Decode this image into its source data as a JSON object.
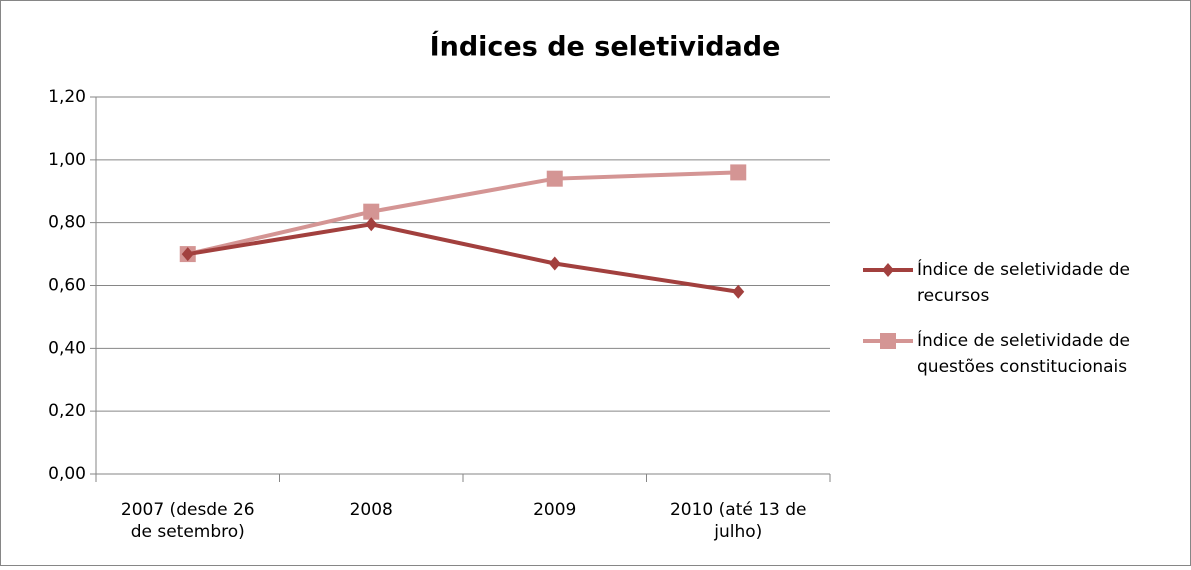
{
  "chart_data": {
    "type": "line",
    "title": "Índices de seletividade",
    "categories": [
      "2007 (desde 26\nde setembro)",
      "2008",
      "2009",
      "2010 (até 13 de\njulho)"
    ],
    "series": [
      {
        "name": "Índice de seletividade de\nrecursos",
        "color": "#a2403e",
        "marker": "diamond",
        "values": [
          0.7,
          0.795,
          0.67,
          0.58
        ]
      },
      {
        "name": "Índice de seletividade de\nquestões constitucionais",
        "color": "#d49594",
        "marker": "square",
        "values": [
          0.7,
          0.835,
          0.94,
          0.96
        ]
      }
    ],
    "ylim": [
      0,
      1.2
    ],
    "yticks": [
      {
        "value": 0,
        "label": "0,00"
      },
      {
        "value": 0.2,
        "label": "0,20"
      },
      {
        "value": 0.4,
        "label": "0,40"
      },
      {
        "value": 0.6,
        "label": "0,60"
      },
      {
        "value": 0.8,
        "label": "0,80"
      },
      {
        "value": 1.0,
        "label": "1,00"
      },
      {
        "value": 1.2,
        "label": "1,20"
      }
    ],
    "grid": true,
    "legend": "right"
  }
}
